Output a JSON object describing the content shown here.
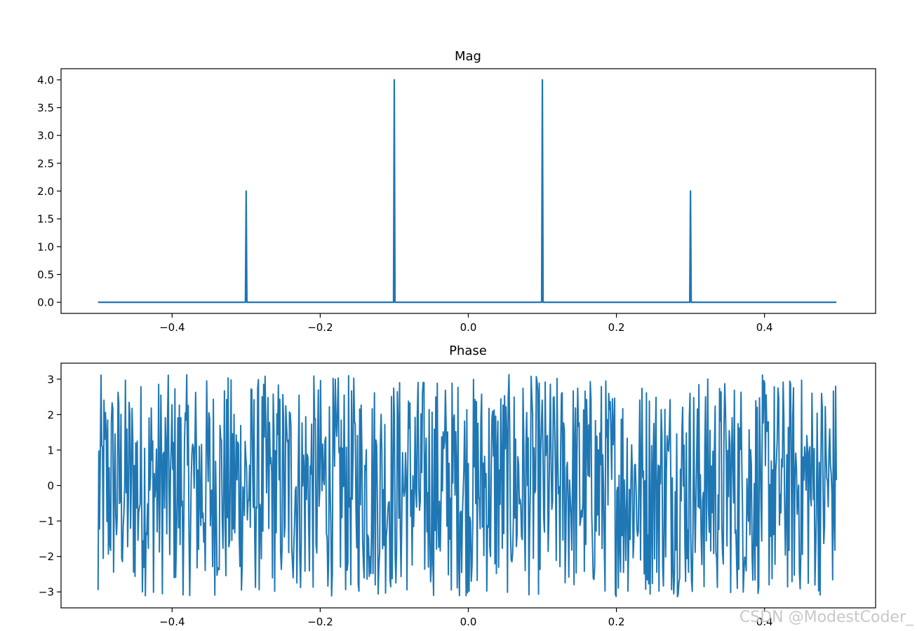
{
  "chart_data": [
    {
      "type": "line",
      "title": "Mag",
      "xlabel": "",
      "ylabel": "",
      "xlim": [
        -0.55,
        0.55
      ],
      "ylim": [
        -0.2,
        4.2
      ],
      "xticks": [
        -0.4,
        -0.2,
        0.0,
        0.2,
        0.4
      ],
      "xtick_labels": [
        "−0.4",
        "−0.2",
        "0.0",
        "0.2",
        "0.4"
      ],
      "yticks": [
        0.0,
        0.5,
        1.0,
        1.5,
        2.0,
        2.5,
        3.0,
        3.5,
        4.0
      ],
      "ytick_labels": [
        "0.0",
        "0.5",
        "1.0",
        "1.5",
        "2.0",
        "2.5",
        "3.0",
        "3.5",
        "4.0"
      ],
      "color": "#1f77b4",
      "x_range": [
        -0.5,
        0.5
      ],
      "baseline": 0.0,
      "peaks": [
        {
          "x": -0.3,
          "y": 2.0
        },
        {
          "x": -0.1,
          "y": 4.0
        },
        {
          "x": 0.1,
          "y": 4.0
        },
        {
          "x": 0.3,
          "y": 2.0
        }
      ],
      "grid": false,
      "legend": "none"
    },
    {
      "type": "line",
      "title": "Phase",
      "xlabel": "",
      "ylabel": "",
      "xlim": [
        -0.55,
        0.55
      ],
      "ylim": [
        -3.45,
        3.45
      ],
      "xticks": [
        -0.4,
        -0.2,
        0.0,
        0.2,
        0.4
      ],
      "xtick_labels": [
        "−0.4",
        "−0.2",
        "0.0",
        "0.2",
        "0.4"
      ],
      "yticks": [
        -3,
        -2,
        -1,
        0,
        1,
        2,
        3
      ],
      "ytick_labels": [
        "−3",
        "−2",
        "−1",
        "0",
        "1",
        "2",
        "3"
      ],
      "color": "#1f77b4",
      "x_range": [
        -0.5,
        0.5
      ],
      "n_points": 1000,
      "value_range": [
        -3.14,
        3.14
      ],
      "x_start": -0.5,
      "y_start": -2.95,
      "x_end": 0.497,
      "y_end": 0.15,
      "grid": false,
      "legend": "none"
    }
  ],
  "watermark": "CSDN @ModestCoder_"
}
